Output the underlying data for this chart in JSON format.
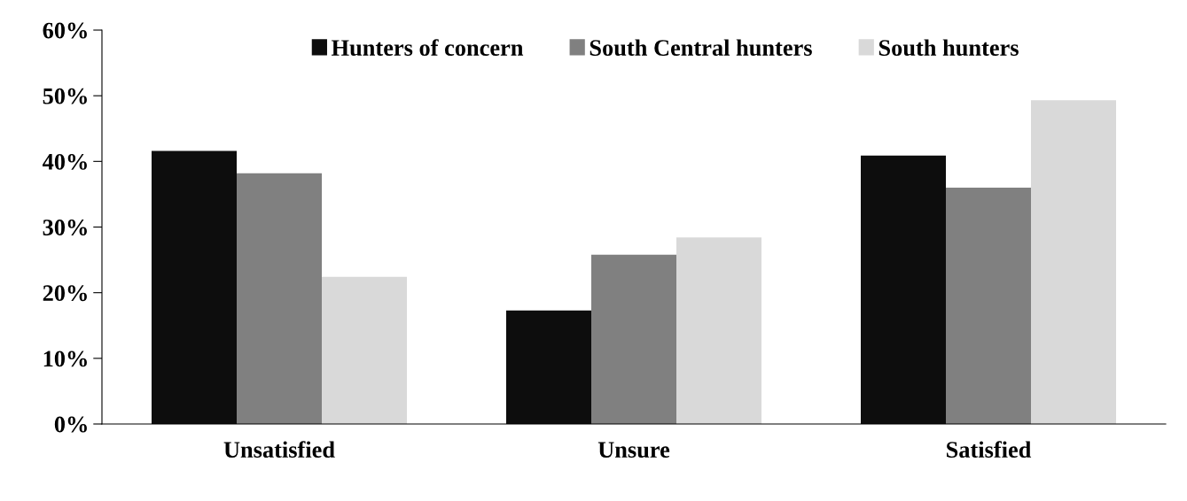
{
  "chart_data": {
    "type": "bar",
    "categories": [
      "Unsatisfied",
      "Unsure",
      "Satisfied"
    ],
    "series": [
      {
        "name": "Hunters of concern",
        "color": "#0d0d0d",
        "values": [
          41.6,
          17.3,
          40.9
        ]
      },
      {
        "name": "South Central hunters",
        "color": "#808080",
        "values": [
          38.2,
          25.8,
          36.0
        ]
      },
      {
        "name": "South hunters",
        "color": "#d9d9d9",
        "values": [
          22.4,
          28.4,
          49.3
        ]
      }
    ],
    "ylim": [
      0,
      60
    ],
    "yticks": [
      {
        "value": 0,
        "label": "0%"
      },
      {
        "value": 10,
        "label": "10%"
      },
      {
        "value": 20,
        "label": "20%"
      },
      {
        "value": 30,
        "label": "30%"
      },
      {
        "value": 40,
        "label": "40%"
      },
      {
        "value": 50,
        "label": "50%"
      },
      {
        "value": 60,
        "label": "60%"
      }
    ],
    "grid": false,
    "legend": "top"
  }
}
